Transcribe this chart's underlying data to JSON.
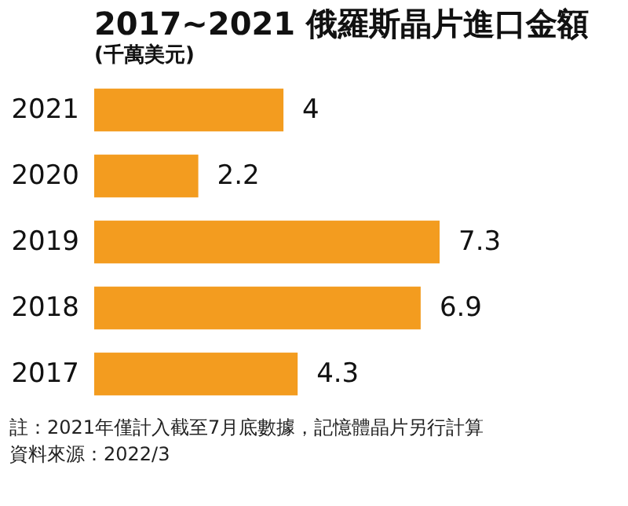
{
  "chart_data": {
    "type": "bar",
    "orientation": "horizontal",
    "title": "2017~2021 俄羅斯晶片進口金額",
    "subtitle": "(千萬美元)",
    "categories": [
      "2021",
      "2020",
      "2019",
      "2018",
      "2017"
    ],
    "values": [
      4,
      2.2,
      7.3,
      6.9,
      4.3
    ],
    "color": "#f39c1f",
    "data_labels": true,
    "annotations": [
      "註：2021年僅計入截至7月底數據，記憶體晶片另行計算",
      "資料來源：2022/3"
    ]
  }
}
